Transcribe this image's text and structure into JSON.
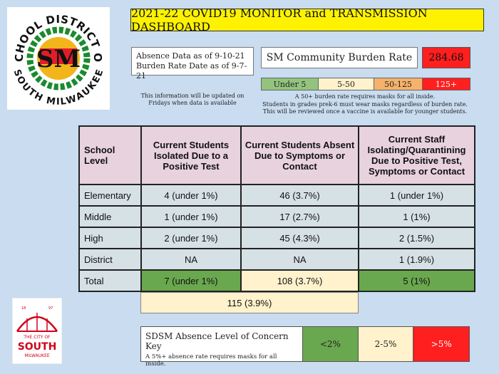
{
  "logo": {
    "ring_top": "SCHOOL DISTRICT OF",
    "ring_bottom": "SOUTH MILWAUKEE",
    "monogram": "SM",
    "colors": {
      "green": "#1a8a2e",
      "red": "#e11d2a",
      "gold": "#f2b51a"
    }
  },
  "header": {
    "title": "2021-22 COVID19 MONITOR and TRANSMISSION DASHBOARD"
  },
  "dates": {
    "absence": "Absence Data as of 9-10-21",
    "burden": "Burden Rate Date as of 9-7-21"
  },
  "update_note": "This information will be updated on Fridays when data is available",
  "burden": {
    "label": "SM Community Burden Rate",
    "value": "284.68",
    "key": [
      {
        "label": "Under 5",
        "color": "#93c47d"
      },
      {
        "label": "5-50",
        "color": "#fff2cc"
      },
      {
        "label": "50-125",
        "color": "#f6b26b"
      },
      {
        "label": "125+",
        "color": "#ff1f1f"
      }
    ],
    "notes": [
      "A 50+ burden rate requires masks for all inside.",
      "Students in grades prek-6 must wear masks regardless of burden rate.",
      "This will be reviewed once a vaccine is available for younger students."
    ]
  },
  "table": {
    "headers": [
      "School Level",
      "Current Students Isolated Due to a Positive Test",
      "Current Students Absent Due to Symptoms or Contact",
      "Current Staff Isolating/Quarantining Due to Positive Test, Symptoms or Contact"
    ],
    "rows": [
      {
        "level": "Elementary",
        "isolated": "4 (under 1%)",
        "absent": "46 (3.7%)",
        "staff": "1 (under 1%)"
      },
      {
        "level": "Middle",
        "isolated": "1 (under 1%)",
        "absent": "17 (2.7%)",
        "staff": "1 (1%)"
      },
      {
        "level": "High",
        "isolated": "2 (under 1%)",
        "absent": "45 (4.3%)",
        "staff": "2 (1.5%)"
      },
      {
        "level": "District",
        "isolated": "NA",
        "absent": "NA",
        "staff": "1 (1.9%)"
      },
      {
        "level": "Total",
        "isolated": "7 (under 1%)",
        "absent": "108 (3.7%)",
        "staff": "5 (1%)"
      }
    ],
    "grand_total": "115 (3.9%)"
  },
  "city_logo": {
    "year_left": "18",
    "year_right": "97",
    "the_city_of": "THE CITY OF",
    "name": "SOUTH",
    "sub": "MILWAUKEE",
    "color": "#d0021b"
  },
  "absence_key": {
    "title": "SDSM Absence Level of Concern Key",
    "subtitle": "A 5%+ absence rate requires masks for all inside.",
    "levels": [
      {
        "label": "<2%",
        "color": "#6aa84f"
      },
      {
        "label": "2-5%",
        "color": "#fff2cc"
      },
      {
        "label": ">5%",
        "color": "#ff1f1f"
      }
    ]
  }
}
